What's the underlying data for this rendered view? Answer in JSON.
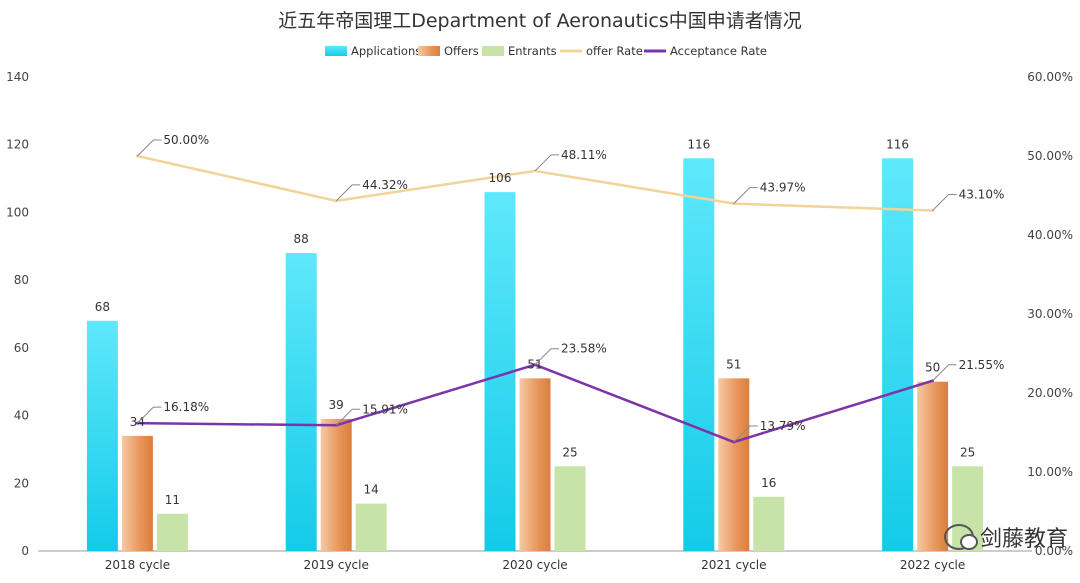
{
  "title": "近五年帝国理工Department of Aeronautics中国申请者情况",
  "watermark_text": "剑藤教育",
  "colors": {
    "applications": "#2fd0ee",
    "offers": "#e9965a",
    "entrants": "#c7e3a8",
    "offer_rate": "#f0d49a",
    "acceptance_rate": "#7b35a8"
  },
  "chart_data": {
    "type": "bar",
    "categories": [
      "2018 cycle",
      "2019 cycle",
      "2020 cycle",
      "2021 cycle",
      "2022 cycle"
    ],
    "series": [
      {
        "name": "Applications",
        "kind": "bar",
        "axis": "left",
        "values": [
          68,
          88,
          106,
          116,
          116
        ]
      },
      {
        "name": "Offers",
        "kind": "bar",
        "axis": "left",
        "values": [
          34,
          39,
          51,
          51,
          50
        ]
      },
      {
        "name": "Entrants",
        "kind": "bar",
        "axis": "left",
        "values": [
          11,
          14,
          25,
          16,
          25
        ]
      },
      {
        "name": "offer Rate",
        "kind": "line",
        "axis": "right",
        "values": [
          50.0,
          44.32,
          48.11,
          43.97,
          43.1
        ]
      },
      {
        "name": "Acceptance Rate",
        "kind": "line",
        "axis": "right",
        "values": [
          16.18,
          15.91,
          23.58,
          13.79,
          21.55
        ]
      }
    ],
    "left_axis": {
      "ylim": [
        0,
        140
      ],
      "ticks": [
        "0",
        "20",
        "40",
        "60",
        "80",
        "100",
        "120",
        "140"
      ]
    },
    "right_axis": {
      "ylim": [
        0,
        60
      ],
      "ticks": [
        "0.00%",
        "10.00%",
        "20.00%",
        "30.00%",
        "40.00%",
        "50.00%",
        "60.00%"
      ]
    },
    "value_labels": {
      "Applications": [
        "68",
        "88",
        "106",
        "116",
        "116"
      ],
      "Offers": [
        "34",
        "39",
        "51",
        "51",
        "50"
      ],
      "Entrants": [
        "11",
        "14",
        "25",
        "16",
        "25"
      ],
      "offer Rate": [
        "50.00%",
        "44.32%",
        "48.11%",
        "43.97%",
        "43.10%"
      ],
      "Acceptance Rate": [
        "16.18%",
        "15.91%",
        "23.58%",
        "13.79%",
        "21.55%"
      ]
    },
    "legend_position": "top-center",
    "grid": false
  }
}
